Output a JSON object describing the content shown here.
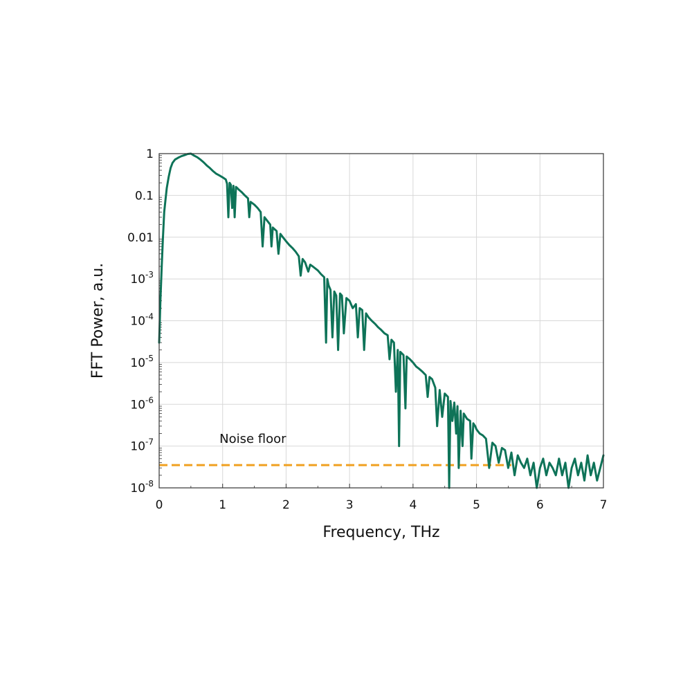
{
  "chart_data": {
    "type": "line",
    "title": "",
    "xlabel": "Frequency, THz",
    "ylabel": "FFT Power, a.u.",
    "xlim": [
      0,
      7
    ],
    "ylim": [
      1e-08,
      1
    ],
    "yscale": "log",
    "grid": true,
    "legend": "none",
    "x_ticks": [
      {
        "value": 0,
        "label": "0"
      },
      {
        "value": 1,
        "label": "1"
      },
      {
        "value": 2,
        "label": "2"
      },
      {
        "value": 3,
        "label": "3"
      },
      {
        "value": 4,
        "label": "4"
      },
      {
        "value": 5,
        "label": "5"
      },
      {
        "value": 6,
        "label": "6"
      },
      {
        "value": 7,
        "label": "7"
      }
    ],
    "y_ticks": [
      {
        "value": 1,
        "label": "1",
        "base": "",
        "exp": ""
      },
      {
        "value": 0.1,
        "label": "0.1",
        "base": "",
        "exp": ""
      },
      {
        "value": 0.01,
        "label": "0.01",
        "base": "",
        "exp": ""
      },
      {
        "value": 0.001,
        "label": "",
        "base": "10",
        "exp": "-3"
      },
      {
        "value": 0.0001,
        "label": "",
        "base": "10",
        "exp": "-4"
      },
      {
        "value": 1e-05,
        "label": "",
        "base": "10",
        "exp": "-5"
      },
      {
        "value": 1e-06,
        "label": "",
        "base": "10",
        "exp": "-6"
      },
      {
        "value": 1e-07,
        "label": "",
        "base": "10",
        "exp": "-7"
      },
      {
        "value": 1e-08,
        "label": "",
        "base": "10",
        "exp": "-8"
      }
    ],
    "series": [
      {
        "color": "#0e7358",
        "x": [
          0.0,
          0.02,
          0.04,
          0.06,
          0.08,
          0.1,
          0.12,
          0.15,
          0.18,
          0.21,
          0.25,
          0.3,
          0.35,
          0.4,
          0.45,
          0.5,
          0.55,
          0.6,
          0.65,
          0.7,
          0.75,
          0.8,
          0.85,
          0.9,
          0.95,
          1.0,
          1.05,
          1.07,
          1.09,
          1.11,
          1.13,
          1.15,
          1.17,
          1.19,
          1.21,
          1.23,
          1.25,
          1.3,
          1.35,
          1.4,
          1.42,
          1.44,
          1.5,
          1.55,
          1.6,
          1.63,
          1.66,
          1.7,
          1.75,
          1.77,
          1.79,
          1.85,
          1.88,
          1.91,
          1.95,
          2.0,
          2.05,
          2.1,
          2.15,
          2.2,
          2.23,
          2.26,
          2.3,
          2.35,
          2.38,
          2.42,
          2.5,
          2.55,
          2.6,
          2.63,
          2.65,
          2.67,
          2.7,
          2.73,
          2.76,
          2.79,
          2.82,
          2.85,
          2.88,
          2.91,
          2.95,
          3.0,
          3.05,
          3.1,
          3.13,
          3.16,
          3.2,
          3.23,
          3.26,
          3.3,
          3.35,
          3.4,
          3.45,
          3.5,
          3.55,
          3.6,
          3.63,
          3.66,
          3.7,
          3.73,
          3.76,
          3.78,
          3.8,
          3.85,
          3.88,
          3.9,
          3.95,
          4.0,
          4.05,
          4.1,
          4.15,
          4.2,
          4.23,
          4.26,
          4.3,
          4.35,
          4.38,
          4.42,
          4.46,
          4.5,
          4.55,
          4.57,
          4.59,
          4.62,
          4.65,
          4.68,
          4.7,
          4.72,
          4.75,
          4.78,
          4.8,
          4.85,
          4.9,
          4.92,
          4.95,
          4.98,
          5.0,
          5.05,
          5.1,
          5.15,
          5.2,
          5.25,
          5.3,
          5.35,
          5.4,
          5.45,
          5.5,
          5.55,
          5.6,
          5.65,
          5.7,
          5.75,
          5.8,
          5.85,
          5.9,
          5.95,
          6.0,
          6.05,
          6.1,
          6.15,
          6.2,
          6.25,
          6.3,
          6.35,
          6.4,
          6.45,
          6.5,
          6.55,
          6.6,
          6.65,
          6.7,
          6.75,
          6.8,
          6.85,
          6.9,
          6.95,
          7.0
        ],
        "y": [
          3e-05,
          0.0003,
          0.002,
          0.01,
          0.04,
          0.08,
          0.15,
          0.28,
          0.45,
          0.6,
          0.72,
          0.8,
          0.87,
          0.92,
          0.98,
          1.0,
          0.9,
          0.82,
          0.72,
          0.62,
          0.52,
          0.45,
          0.38,
          0.33,
          0.3,
          0.27,
          0.24,
          0.19,
          0.03,
          0.2,
          0.18,
          0.05,
          0.17,
          0.03,
          0.16,
          0.15,
          0.14,
          0.12,
          0.1,
          0.085,
          0.03,
          0.07,
          0.06,
          0.05,
          0.04,
          0.006,
          0.03,
          0.025,
          0.02,
          0.006,
          0.017,
          0.014,
          0.004,
          0.012,
          0.01,
          0.008,
          0.0065,
          0.0055,
          0.0045,
          0.0035,
          0.0012,
          0.003,
          0.0025,
          0.0015,
          0.0022,
          0.002,
          0.0016,
          0.0013,
          0.0011,
          3e-05,
          0.001,
          0.0007,
          0.00055,
          4e-05,
          0.0005,
          0.0004,
          2e-05,
          0.00045,
          0.0004,
          5e-05,
          0.00035,
          0.0003,
          0.0002,
          0.00025,
          4e-05,
          0.0002,
          0.00018,
          2e-05,
          0.00015,
          0.00012,
          0.0001,
          8.5e-05,
          7e-05,
          6e-05,
          5e-05,
          4.5e-05,
          1.2e-05,
          3.5e-05,
          3e-05,
          2e-06,
          2e-05,
          1e-07,
          1.8e-05,
          1.5e-05,
          8e-07,
          1.4e-05,
          1.2e-05,
          1e-05,
          8e-06,
          7e-06,
          6e-06,
          5e-06,
          1.5e-06,
          4.5e-06,
          4e-06,
          2.5e-06,
          3e-07,
          2.2e-06,
          5e-07,
          1.8e-06,
          1.5e-06,
          1e-08,
          1.2e-06,
          4e-07,
          1.1e-06,
          2e-07,
          9e-07,
          3e-08,
          7e-07,
          1e-07,
          6e-07,
          4.5e-07,
          4e-07,
          5e-08,
          3.5e-07,
          3e-07,
          2.5e-07,
          2e-07,
          1.8e-07,
          1.5e-07,
          3e-08,
          1.2e-07,
          1e-07,
          4e-08,
          9e-08,
          8e-08,
          3e-08,
          7e-08,
          2e-08,
          6e-08,
          4e-08,
          3e-08,
          5e-08,
          2e-08,
          4e-08,
          1e-08,
          3e-08,
          5e-08,
          2e-08,
          4e-08,
          3e-08,
          2e-08,
          5e-08,
          2e-08,
          4e-08,
          1e-08,
          3e-08,
          5e-08,
          2e-08,
          4e-08,
          1.5e-08,
          6e-08,
          2e-08,
          4e-08,
          1.5e-08,
          3e-08,
          6e-08
        ]
      }
    ],
    "annotations": [
      {
        "text": "Noise floor",
        "x": 0.95,
        "y": 1.2e-07
      }
    ],
    "reference_lines": [
      {
        "orientation": "horizontal",
        "y": 3.5e-08,
        "x_start": 0.0,
        "x_end": 5.55,
        "color": "#f0a020",
        "style": "dashed"
      }
    ]
  }
}
